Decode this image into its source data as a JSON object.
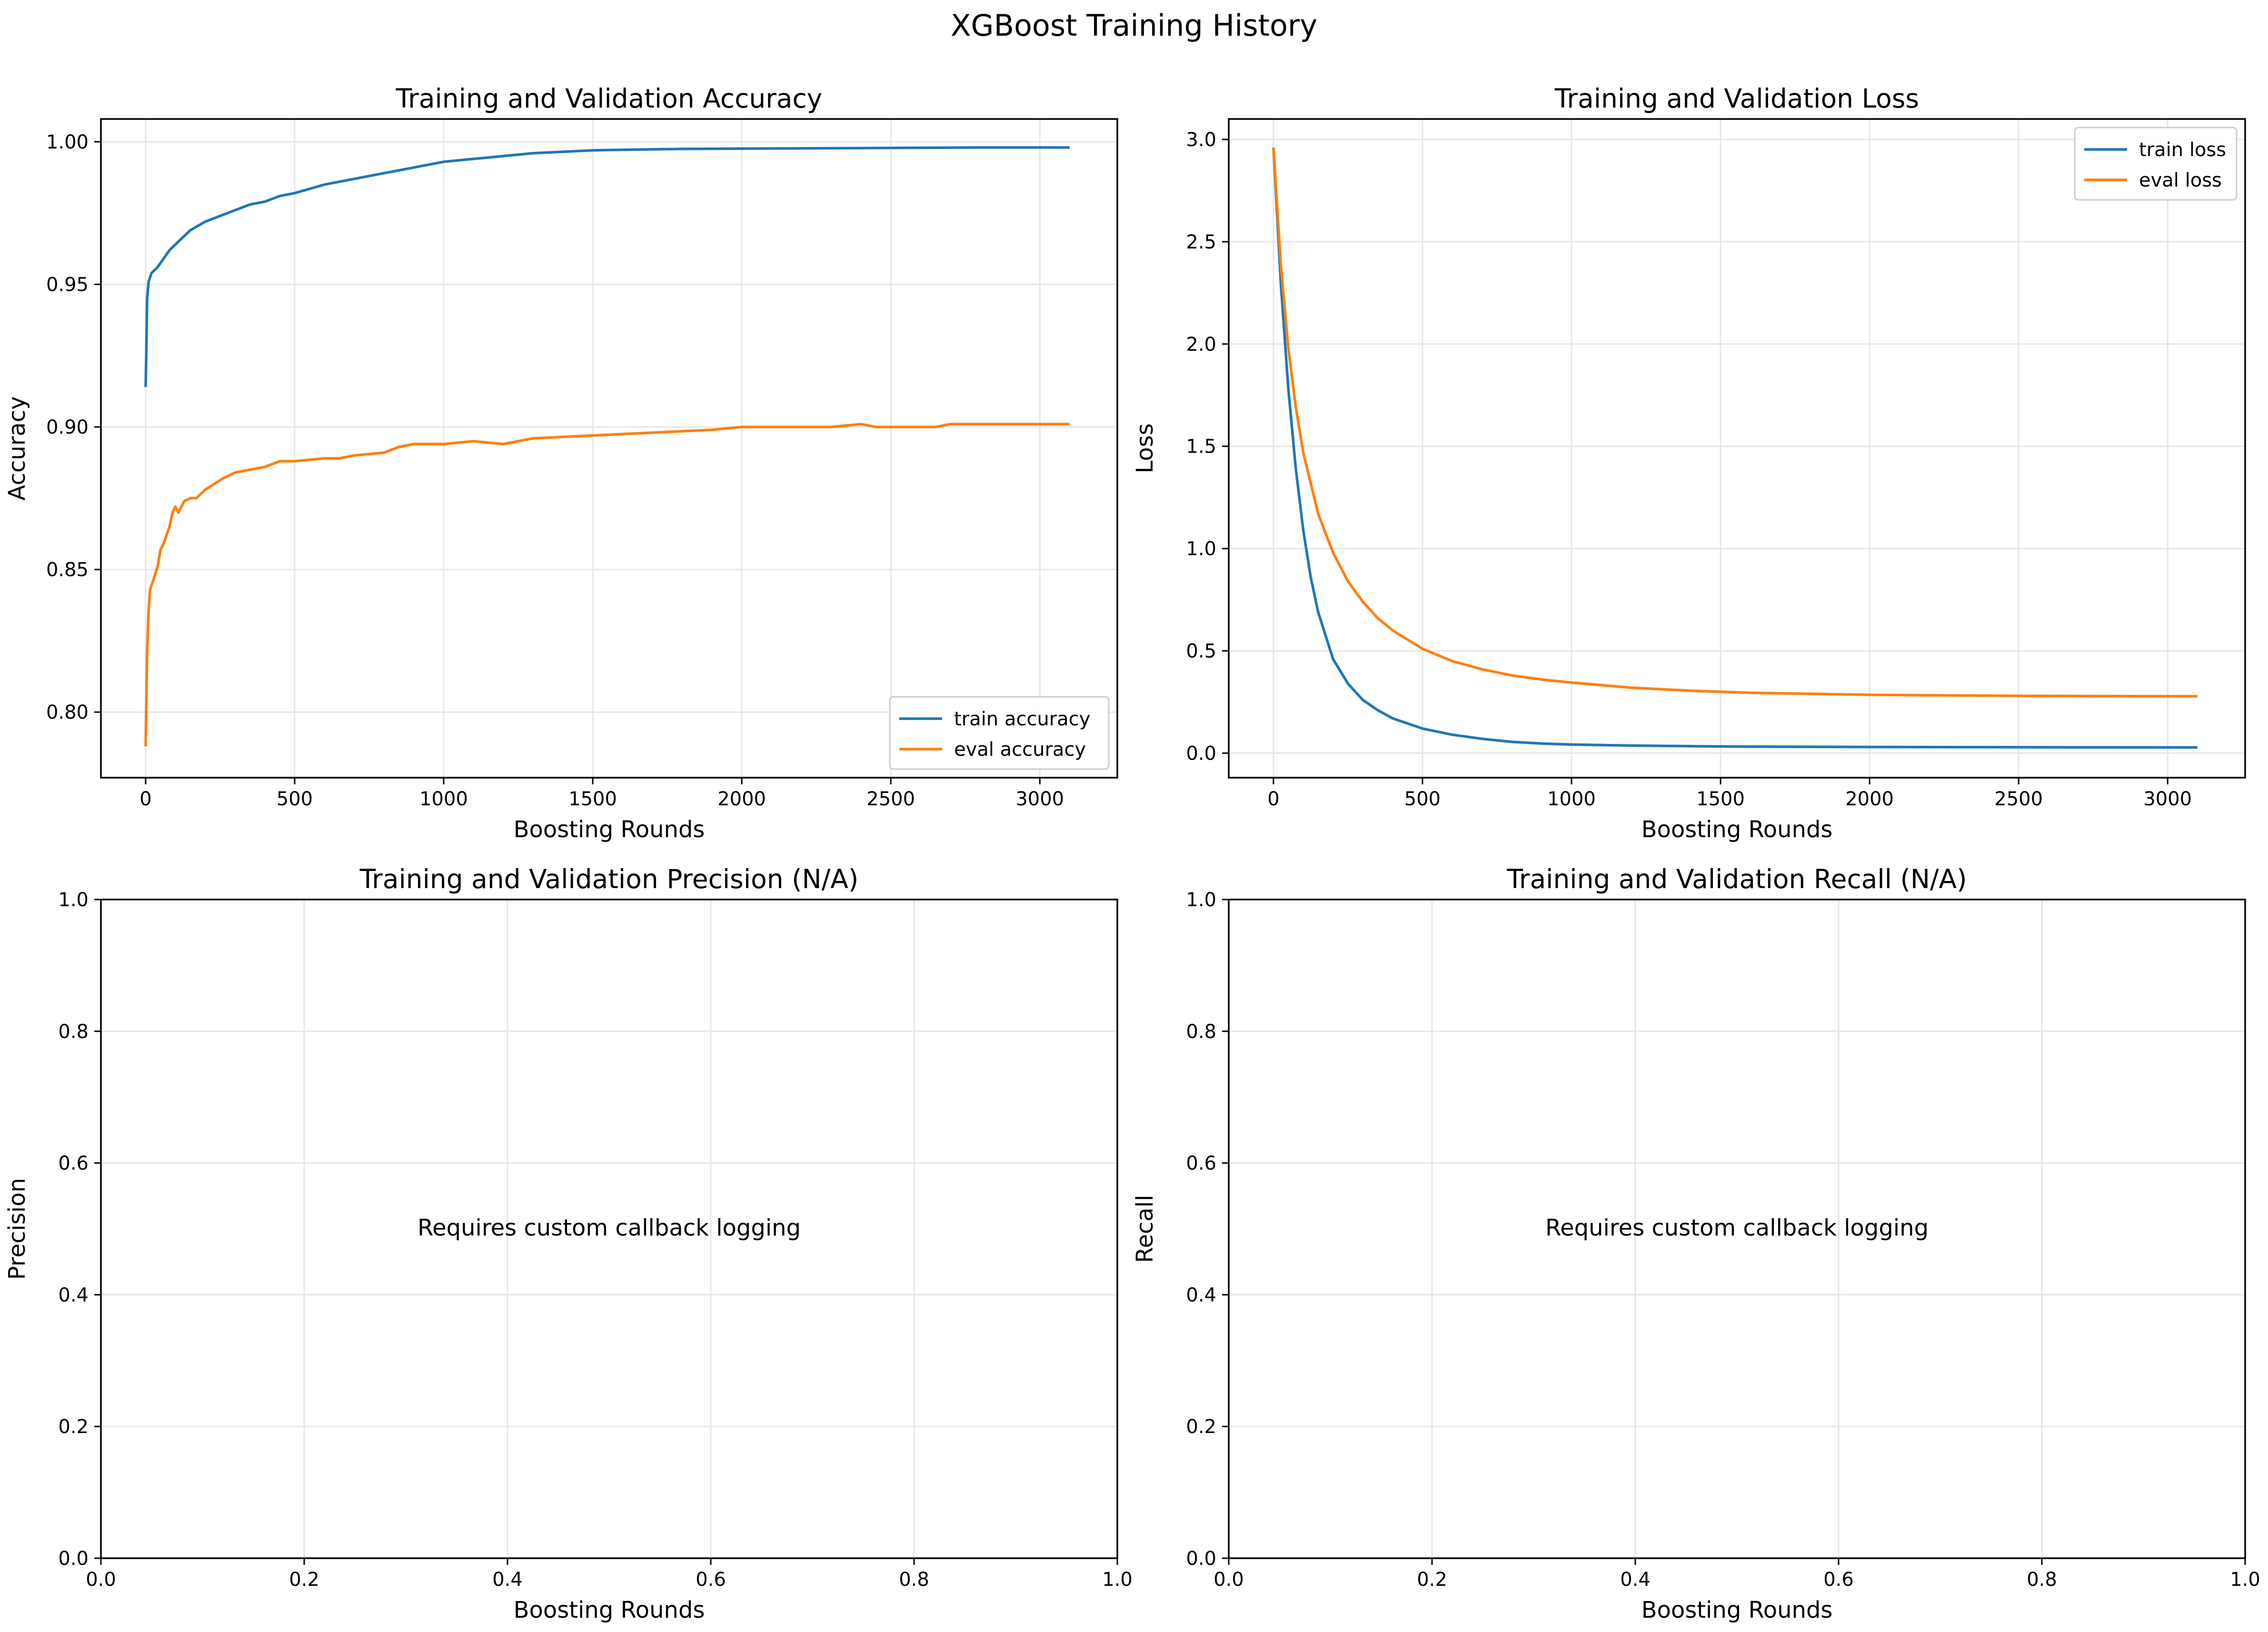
{
  "suptitle": "XGBoost Training History",
  "colors": {
    "train": "#1f77b4",
    "eval": "#ff7f0e",
    "grid": "#e6e6e6",
    "axis": "#000000"
  },
  "chart_data": [
    {
      "type": "line",
      "title": "Training and Validation Accuracy",
      "xlabel": "Boosting Rounds",
      "ylabel": "Accuracy",
      "xlim": [
        -150,
        3260
      ],
      "ylim": [
        0.777,
        1.008
      ],
      "xticks": [
        0,
        500,
        1000,
        1500,
        2000,
        2500,
        3000
      ],
      "yticks": [
        0.8,
        0.85,
        0.9,
        0.95,
        1.0
      ],
      "ytick_labels": [
        "0.80",
        "0.85",
        "0.90",
        "0.95",
        "1.00"
      ],
      "grid": true,
      "legend": "bottom-right",
      "series": [
        {
          "name": "train accuracy",
          "color": "#1f77b4",
          "x": [
            0,
            2,
            5,
            10,
            20,
            40,
            60,
            80,
            100,
            150,
            200,
            250,
            300,
            350,
            400,
            450,
            500,
            600,
            700,
            800,
            900,
            1000,
            1100,
            1200,
            1300,
            1400,
            1500,
            1600,
            1800,
            2000,
            2200,
            2400,
            2600,
            2800,
            3000,
            3100
          ],
          "y": [
            0.914,
            0.925,
            0.945,
            0.951,
            0.954,
            0.956,
            0.959,
            0.962,
            0.964,
            0.969,
            0.972,
            0.974,
            0.976,
            0.978,
            0.979,
            0.981,
            0.982,
            0.985,
            0.987,
            0.989,
            0.991,
            0.993,
            0.994,
            0.995,
            0.996,
            0.9965,
            0.997,
            0.9972,
            0.9975,
            0.9976,
            0.9977,
            0.9978,
            0.9979,
            0.998,
            0.998,
            0.998
          ]
        },
        {
          "name": "eval accuracy",
          "color": "#ff7f0e",
          "x": [
            0,
            2,
            5,
            10,
            15,
            25,
            40,
            50,
            60,
            70,
            80,
            90,
            100,
            110,
            120,
            130,
            150,
            170,
            200,
            230,
            260,
            300,
            350,
            400,
            450,
            500,
            600,
            650,
            700,
            800,
            850,
            900,
            1000,
            1100,
            1200,
            1300,
            1500,
            1700,
            1900,
            2000,
            2300,
            2400,
            2450,
            2650,
            2700,
            3000,
            3100
          ],
          "y": [
            0.788,
            0.803,
            0.821,
            0.836,
            0.843,
            0.846,
            0.851,
            0.857,
            0.859,
            0.862,
            0.865,
            0.87,
            0.872,
            0.87,
            0.872,
            0.874,
            0.875,
            0.875,
            0.878,
            0.88,
            0.882,
            0.884,
            0.885,
            0.886,
            0.888,
            0.888,
            0.889,
            0.889,
            0.89,
            0.891,
            0.893,
            0.894,
            0.894,
            0.895,
            0.894,
            0.896,
            0.897,
            0.898,
            0.899,
            0.9,
            0.9,
            0.901,
            0.9,
            0.9,
            0.901,
            0.901,
            0.901
          ]
        }
      ]
    },
    {
      "type": "line",
      "title": "Training and Validation Loss",
      "xlabel": "Boosting Rounds",
      "ylabel": "Loss",
      "xlim": [
        -150,
        3260
      ],
      "ylim": [
        -0.12,
        3.1
      ],
      "xticks": [
        0,
        500,
        1000,
        1500,
        2000,
        2500,
        3000
      ],
      "yticks": [
        0.0,
        0.5,
        1.0,
        1.5,
        2.0,
        2.5,
        3.0
      ],
      "ytick_labels": [
        "0.0",
        "0.5",
        "1.0",
        "1.5",
        "2.0",
        "2.5",
        "3.0"
      ],
      "grid": true,
      "legend": "top-right",
      "series": [
        {
          "name": "train loss",
          "color": "#1f77b4",
          "x": [
            0,
            25,
            50,
            75,
            100,
            125,
            150,
            200,
            250,
            300,
            350,
            400,
            500,
            600,
            700,
            800,
            900,
            1000,
            1200,
            1400,
            1600,
            1800,
            2000,
            2500,
            3000,
            3100
          ],
          "y": [
            2.96,
            2.29,
            1.78,
            1.39,
            1.09,
            0.86,
            0.69,
            0.46,
            0.34,
            0.26,
            0.21,
            0.17,
            0.12,
            0.09,
            0.07,
            0.055,
            0.047,
            0.042,
            0.037,
            0.034,
            0.032,
            0.031,
            0.03,
            0.029,
            0.028,
            0.028
          ]
        },
        {
          "name": "eval loss",
          "color": "#ff7f0e",
          "x": [
            0,
            25,
            50,
            75,
            100,
            150,
            200,
            250,
            300,
            350,
            400,
            500,
            600,
            700,
            800,
            900,
            1000,
            1200,
            1400,
            1600,
            1800,
            2000,
            2500,
            3000,
            3100
          ],
          "y": [
            2.96,
            2.38,
            1.98,
            1.69,
            1.47,
            1.17,
            0.98,
            0.84,
            0.74,
            0.66,
            0.6,
            0.51,
            0.45,
            0.41,
            0.38,
            0.36,
            0.345,
            0.32,
            0.305,
            0.295,
            0.29,
            0.285,
            0.28,
            0.278,
            0.278
          ]
        }
      ]
    },
    {
      "type": "line",
      "title": "Training and Validation Precision (N/A)",
      "xlabel": "Boosting Rounds",
      "ylabel": "Precision",
      "xlim": [
        0,
        1
      ],
      "ylim": [
        0,
        1
      ],
      "xticks": [
        0.0,
        0.2,
        0.4,
        0.6,
        0.8,
        1.0
      ],
      "xtick_labels": [
        "0.0",
        "0.2",
        "0.4",
        "0.6",
        "0.8",
        "1.0"
      ],
      "yticks": [
        0.0,
        0.2,
        0.4,
        0.6,
        0.8,
        1.0
      ],
      "ytick_labels": [
        "0.0",
        "0.2",
        "0.4",
        "0.6",
        "0.8",
        "1.0"
      ],
      "grid": true,
      "annotation": "Requires custom callback logging",
      "series": []
    },
    {
      "type": "line",
      "title": "Training and Validation Recall (N/A)",
      "xlabel": "Boosting Rounds",
      "ylabel": "Recall",
      "xlim": [
        0,
        1
      ],
      "ylim": [
        0,
        1
      ],
      "xticks": [
        0.0,
        0.2,
        0.4,
        0.6,
        0.8,
        1.0
      ],
      "xtick_labels": [
        "0.0",
        "0.2",
        "0.4",
        "0.6",
        "0.8",
        "1.0"
      ],
      "yticks": [
        0.0,
        0.2,
        0.4,
        0.6,
        0.8,
        1.0
      ],
      "ytick_labels": [
        "0.0",
        "0.2",
        "0.4",
        "0.6",
        "0.8",
        "1.0"
      ],
      "grid": true,
      "annotation": "Requires custom callback logging",
      "series": []
    }
  ]
}
